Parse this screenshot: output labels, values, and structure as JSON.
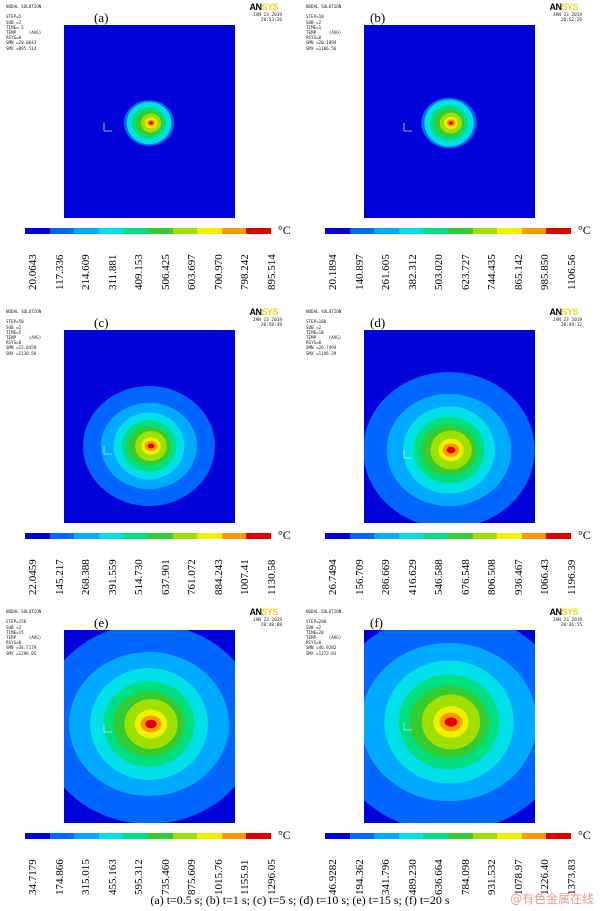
{
  "logo": {
    "an": "AN",
    "sys": "SYS"
  },
  "colors": [
    "#0000d8",
    "#0066ff",
    "#00aaff",
    "#00e0e8",
    "#00e080",
    "#33cc33",
    "#a0e000",
    "#f0f000",
    "#ff9900",
    "#e00000"
  ],
  "unit": "°C",
  "panels": [
    {
      "label": "(a)",
      "header": "NODAL SOLUTION\n\nSTEP=5\nSUB =2\nTIME=.5\nTEMP     (AVG)\nRSYS=0\nSMN =20.0643\nSMX =895.514",
      "date": "JAN 23 2019\n20:53:36",
      "ticks": [
        "20.0643",
        "117.336",
        "214.609",
        "311.881",
        "409.153",
        "506.425",
        "603.697",
        "700.970",
        "798.242",
        "895.514"
      ]
    },
    {
      "label": "(b)",
      "header": "NODAL SOLUTION\n\nSTEP=10\nSUB =2\nTIME=1\nTEMP     (AVG)\nRSYS=0\nSMN =20.1894\nSMX =1106.56",
      "date": "JAN 23 2019\n20:52:26",
      "ticks": [
        "20.1894",
        "140.897",
        "261.605",
        "382.312",
        "503.020",
        "623.727",
        "744.435",
        "865.142",
        "985.850",
        "1106.56"
      ]
    },
    {
      "label": "(c)",
      "header": "NODAL SOLUTION\n\nSTEP=50\nSUB =2\nTIME=5\nTEMP     (AVG)\nRSYS=0\nSMN =22.0459\nSMX =1130.58",
      "date": "JAN 23 2019\n20:50:49",
      "ticks": [
        "22.0459",
        "145.217",
        "268.388",
        "391.559",
        "514.730",
        "637.901",
        "761.072",
        "884.243",
        "1007.41",
        "1130.58"
      ]
    },
    {
      "label": "(d)",
      "header": "NODAL SOLUTION\n\nSTEP=100\nSUB =2\nTIME=10\nTEMP     (AVG)\nRSYS=0\nSMN =26.7494\nSMX =1196.39",
      "date": "JAN 23 2019\n20:49:32",
      "ticks": [
        "26.7494",
        "156.709",
        "286.669",
        "416.629",
        "546.588",
        "676.548",
        "806.508",
        "936.467",
        "1066.43",
        "1196.39"
      ]
    },
    {
      "label": "(e)",
      "header": "NODAL SOLUTION\n\nSTEP=150\nSUB =2\nTIME=15\nTEMP     (AVG)\nRSYS=0\nSMN =34.7179\nSMX =1296.05",
      "date": "JAN 23 2019\n20:48:08",
      "ticks": [
        "34.7179",
        "174.866",
        "315.015",
        "455.163",
        "595.312",
        "735.460",
        "875.609",
        "1015.76",
        "1155.91",
        "1296.05"
      ]
    },
    {
      "label": "(f)",
      "header": "NODAL SOLUTION\n\nSTEP=200\nSUB =2\nTIME=20\nTEMP     (AVG)\nRSYS=0\nSMN =46.9282\nSMX =1373.83",
      "date": "JAN 23 2019\n20:46:55",
      "ticks": [
        "46.9282",
        "194.362",
        "341.796",
        "489.230",
        "636.664",
        "784.098",
        "931.532",
        "1078.97",
        "1226.40",
        "1373.83"
      ]
    }
  ],
  "caption": "(a) t=0.5 s; (b) t=1 s; (c) t=5 s; (d) t=10 s; (e) t=15 s; (f) t=20 s",
  "watermark": "@有色金属在线"
}
